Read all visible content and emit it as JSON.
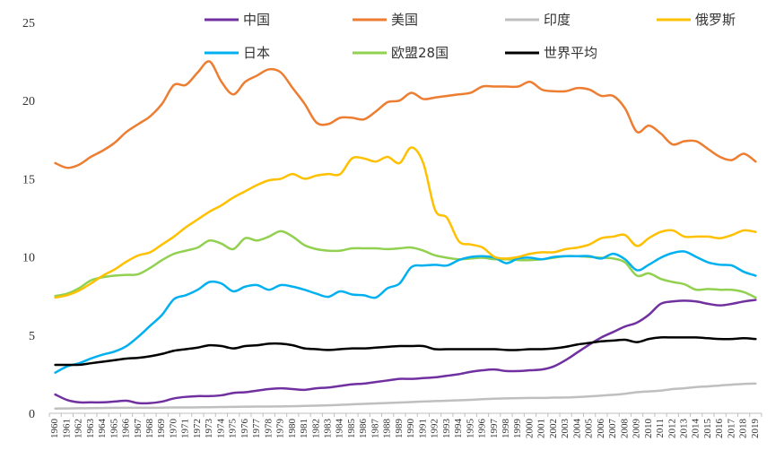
{
  "chart_data": {
    "type": "line",
    "title": "",
    "xlabel": "",
    "ylabel": "",
    "ylim": [
      0,
      25
    ],
    "yticks": [
      0,
      5,
      10,
      15,
      20,
      25
    ],
    "grid": false,
    "legend_position": "top",
    "x": [
      1960,
      1961,
      1962,
      1963,
      1964,
      1965,
      1966,
      1967,
      1968,
      1969,
      1970,
      1971,
      1972,
      1973,
      1974,
      1975,
      1976,
      1977,
      1978,
      1979,
      1980,
      1981,
      1982,
      1983,
      1984,
      1985,
      1986,
      1987,
      1988,
      1989,
      1990,
      1991,
      1992,
      1993,
      1994,
      1995,
      1996,
      1997,
      1998,
      1999,
      2000,
      2001,
      2002,
      2003,
      2004,
      2005,
      2006,
      2007,
      2008,
      2009,
      2010,
      2011,
      2012,
      2013,
      2014,
      2015,
      2016,
      2017,
      2018,
      2019
    ],
    "series": [
      {
        "name": "中国",
        "color": "#7030a0",
        "values": [
          1.2,
          0.85,
          0.7,
          0.7,
          0.7,
          0.75,
          0.8,
          0.65,
          0.65,
          0.75,
          0.95,
          1.05,
          1.1,
          1.1,
          1.15,
          1.3,
          1.35,
          1.45,
          1.55,
          1.6,
          1.55,
          1.5,
          1.6,
          1.65,
          1.75,
          1.85,
          1.9,
          2.0,
          2.1,
          2.2,
          2.2,
          2.25,
          2.3,
          2.4,
          2.5,
          2.65,
          2.75,
          2.8,
          2.7,
          2.7,
          2.75,
          2.8,
          3.0,
          3.4,
          3.9,
          4.4,
          4.85,
          5.2,
          5.55,
          5.8,
          6.3,
          7.0,
          7.15,
          7.2,
          7.15,
          7.0,
          6.9,
          7.0,
          7.15,
          7.25
        ]
      },
      {
        "name": "美国",
        "color": "#ed7d31",
        "values": [
          16.0,
          15.7,
          15.9,
          16.4,
          16.8,
          17.3,
          18.0,
          18.5,
          19.0,
          19.8,
          21.0,
          21.0,
          21.8,
          22.5,
          21.2,
          20.4,
          21.2,
          21.6,
          22.0,
          21.8,
          20.8,
          19.8,
          18.6,
          18.5,
          18.9,
          18.9,
          18.8,
          19.3,
          19.9,
          20.0,
          20.5,
          20.1,
          20.2,
          20.3,
          20.4,
          20.5,
          20.9,
          20.9,
          20.9,
          20.9,
          21.2,
          20.7,
          20.6,
          20.6,
          20.8,
          20.7,
          20.3,
          20.3,
          19.5,
          18.0,
          18.4,
          17.9,
          17.2,
          17.4,
          17.4,
          16.9,
          16.4,
          16.2,
          16.6,
          16.1
        ]
      },
      {
        "name": "印度",
        "color": "#bfbfbf",
        "values": [
          0.3,
          0.31,
          0.32,
          0.33,
          0.34,
          0.35,
          0.35,
          0.35,
          0.35,
          0.36,
          0.37,
          0.37,
          0.38,
          0.39,
          0.4,
          0.41,
          0.42,
          0.43,
          0.43,
          0.44,
          0.45,
          0.47,
          0.49,
          0.51,
          0.54,
          0.57,
          0.6,
          0.63,
          0.66,
          0.69,
          0.72,
          0.75,
          0.78,
          0.8,
          0.83,
          0.86,
          0.9,
          0.93,
          0.95,
          0.97,
          0.98,
          0.98,
          1.0,
          1.01,
          1.04,
          1.08,
          1.13,
          1.18,
          1.25,
          1.35,
          1.4,
          1.45,
          1.55,
          1.6,
          1.68,
          1.72,
          1.78,
          1.83,
          1.88,
          1.9
        ]
      },
      {
        "name": "俄罗斯",
        "color": "#ffc000",
        "values": [
          7.4,
          7.55,
          7.85,
          8.3,
          8.8,
          9.2,
          9.7,
          10.1,
          10.3,
          10.8,
          11.3,
          11.9,
          12.4,
          12.9,
          13.3,
          13.8,
          14.2,
          14.6,
          14.9,
          15.0,
          15.3,
          15.0,
          15.2,
          15.3,
          15.3,
          16.3,
          16.3,
          16.1,
          16.4,
          16.0,
          17.0,
          16.0,
          13.0,
          12.5,
          11.0,
          10.8,
          10.6,
          10.0,
          9.9,
          10.0,
          10.2,
          10.3,
          10.3,
          10.5,
          10.6,
          10.8,
          11.2,
          11.3,
          11.4,
          10.7,
          11.2,
          11.6,
          11.7,
          11.3,
          11.3,
          11.3,
          11.2,
          11.4,
          11.7,
          11.6
        ]
      },
      {
        "name": "日本",
        "color": "#00b0f0",
        "values": [
          2.6,
          3.0,
          3.2,
          3.5,
          3.75,
          3.95,
          4.3,
          4.9,
          5.6,
          6.3,
          7.3,
          7.55,
          7.9,
          8.4,
          8.3,
          7.8,
          8.1,
          8.2,
          7.9,
          8.2,
          8.1,
          7.9,
          7.65,
          7.45,
          7.8,
          7.6,
          7.55,
          7.4,
          8.0,
          8.3,
          9.35,
          9.45,
          9.5,
          9.45,
          9.8,
          10.0,
          10.05,
          9.95,
          9.6,
          9.9,
          9.95,
          9.85,
          10.0,
          10.05,
          10.05,
          10.05,
          9.9,
          10.2,
          9.85,
          9.15,
          9.5,
          9.95,
          10.25,
          10.35,
          10.0,
          9.65,
          9.5,
          9.45,
          9.05,
          8.8
        ]
      },
      {
        "name": "欧盟28国",
        "color": "#92d050",
        "values": [
          7.5,
          7.65,
          8.0,
          8.5,
          8.7,
          8.8,
          8.85,
          8.9,
          9.3,
          9.8,
          10.2,
          10.4,
          10.6,
          11.05,
          10.85,
          10.5,
          11.2,
          11.05,
          11.3,
          11.65,
          11.3,
          10.75,
          10.5,
          10.4,
          10.4,
          10.55,
          10.55,
          10.55,
          10.5,
          10.55,
          10.6,
          10.4,
          10.1,
          9.95,
          9.85,
          9.9,
          9.95,
          9.85,
          9.85,
          9.8,
          9.8,
          9.85,
          9.95,
          10.05,
          10.05,
          10.0,
          9.95,
          9.9,
          9.65,
          8.8,
          8.95,
          8.6,
          8.4,
          8.25,
          7.9,
          7.95,
          7.9,
          7.9,
          7.75,
          7.4
        ]
      },
      {
        "name": "世界平均",
        "color": "#000000",
        "values": [
          3.1,
          3.1,
          3.1,
          3.2,
          3.3,
          3.4,
          3.5,
          3.55,
          3.65,
          3.8,
          4.0,
          4.1,
          4.2,
          4.35,
          4.3,
          4.15,
          4.3,
          4.35,
          4.45,
          4.45,
          4.35,
          4.15,
          4.1,
          4.05,
          4.1,
          4.15,
          4.15,
          4.2,
          4.25,
          4.3,
          4.3,
          4.3,
          4.1,
          4.1,
          4.1,
          4.1,
          4.1,
          4.1,
          4.05,
          4.05,
          4.1,
          4.1,
          4.15,
          4.25,
          4.4,
          4.5,
          4.6,
          4.65,
          4.7,
          4.55,
          4.75,
          4.85,
          4.85,
          4.85,
          4.85,
          4.8,
          4.75,
          4.75,
          4.8,
          4.75
        ]
      }
    ]
  }
}
